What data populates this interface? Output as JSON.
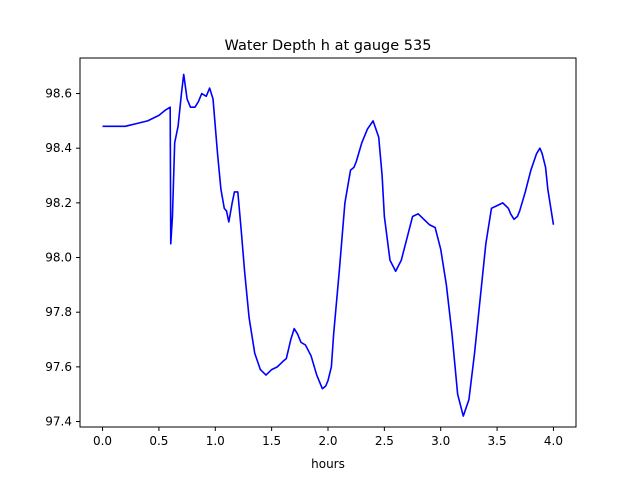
{
  "chart_data": {
    "type": "line",
    "title": "Water Depth h at gauge 535",
    "xlabel": "hours",
    "ylabel": "",
    "xlim": [
      -0.2,
      4.2
    ],
    "ylim": [
      97.38,
      98.73
    ],
    "xticks": [
      0.0,
      0.5,
      1.0,
      1.5,
      2.0,
      2.5,
      3.0,
      3.5,
      4.0
    ],
    "xtick_labels": [
      "0.0",
      "0.5",
      "1.0",
      "1.5",
      "2.0",
      "2.5",
      "3.0",
      "3.5",
      "4.0"
    ],
    "yticks": [
      97.4,
      97.6,
      97.8,
      98.0,
      98.2,
      98.4,
      98.6
    ],
    "ytick_labels": [
      "97.4",
      "97.6",
      "97.8",
      "98.0",
      "98.2",
      "98.4",
      "98.6"
    ],
    "grid": false,
    "line_color": "#0000ff",
    "series": [
      {
        "x": [
          0.0,
          0.2,
          0.3,
          0.4,
          0.5,
          0.56,
          0.6,
          0.605,
          0.62,
          0.64,
          0.67,
          0.7,
          0.72,
          0.75,
          0.78,
          0.82,
          0.85,
          0.88,
          0.92,
          0.95,
          0.98,
          1.0,
          1.02,
          1.05,
          1.08,
          1.1,
          1.12,
          1.15,
          1.17,
          1.2,
          1.23,
          1.26,
          1.3,
          1.35,
          1.4,
          1.45,
          1.5,
          1.55,
          1.6,
          1.63,
          1.67,
          1.7,
          1.73,
          1.76,
          1.8,
          1.85,
          1.9,
          1.95,
          1.98,
          2.0,
          2.03,
          2.05,
          2.1,
          2.15,
          2.2,
          2.23,
          2.25,
          2.3,
          2.35,
          2.4,
          2.45,
          2.48,
          2.5,
          2.55,
          2.6,
          2.65,
          2.7,
          2.75,
          2.8,
          2.85,
          2.9,
          2.95,
          3.0,
          3.05,
          3.1,
          3.15,
          3.2,
          3.25,
          3.3,
          3.35,
          3.4,
          3.45,
          3.5,
          3.55,
          3.6,
          3.62,
          3.65,
          3.68,
          3.7,
          3.75,
          3.8,
          3.85,
          3.88,
          3.9,
          3.93,
          3.95,
          4.0
        ],
        "y": [
          98.48,
          98.48,
          98.49,
          98.5,
          98.52,
          98.54,
          98.55,
          98.05,
          98.15,
          98.42,
          98.48,
          98.6,
          98.67,
          98.58,
          98.55,
          98.55,
          98.57,
          98.6,
          98.59,
          98.62,
          98.58,
          98.48,
          98.38,
          98.25,
          98.18,
          98.17,
          98.13,
          98.2,
          98.24,
          98.24,
          98.1,
          97.95,
          97.78,
          97.65,
          97.59,
          97.57,
          97.59,
          97.6,
          97.62,
          97.63,
          97.7,
          97.74,
          97.72,
          97.69,
          97.68,
          97.64,
          97.57,
          97.52,
          97.53,
          97.55,
          97.6,
          97.72,
          97.95,
          98.2,
          98.32,
          98.33,
          98.35,
          98.42,
          98.47,
          98.5,
          98.44,
          98.3,
          98.15,
          97.99,
          97.95,
          97.99,
          98.07,
          98.15,
          98.16,
          98.14,
          98.12,
          98.11,
          98.03,
          97.9,
          97.72,
          97.5,
          97.42,
          97.48,
          97.65,
          97.85,
          98.05,
          98.18,
          98.19,
          98.2,
          98.18,
          98.16,
          98.14,
          98.15,
          98.17,
          98.24,
          98.32,
          98.38,
          98.4,
          98.38,
          98.33,
          98.25,
          98.12
        ]
      }
    ]
  }
}
